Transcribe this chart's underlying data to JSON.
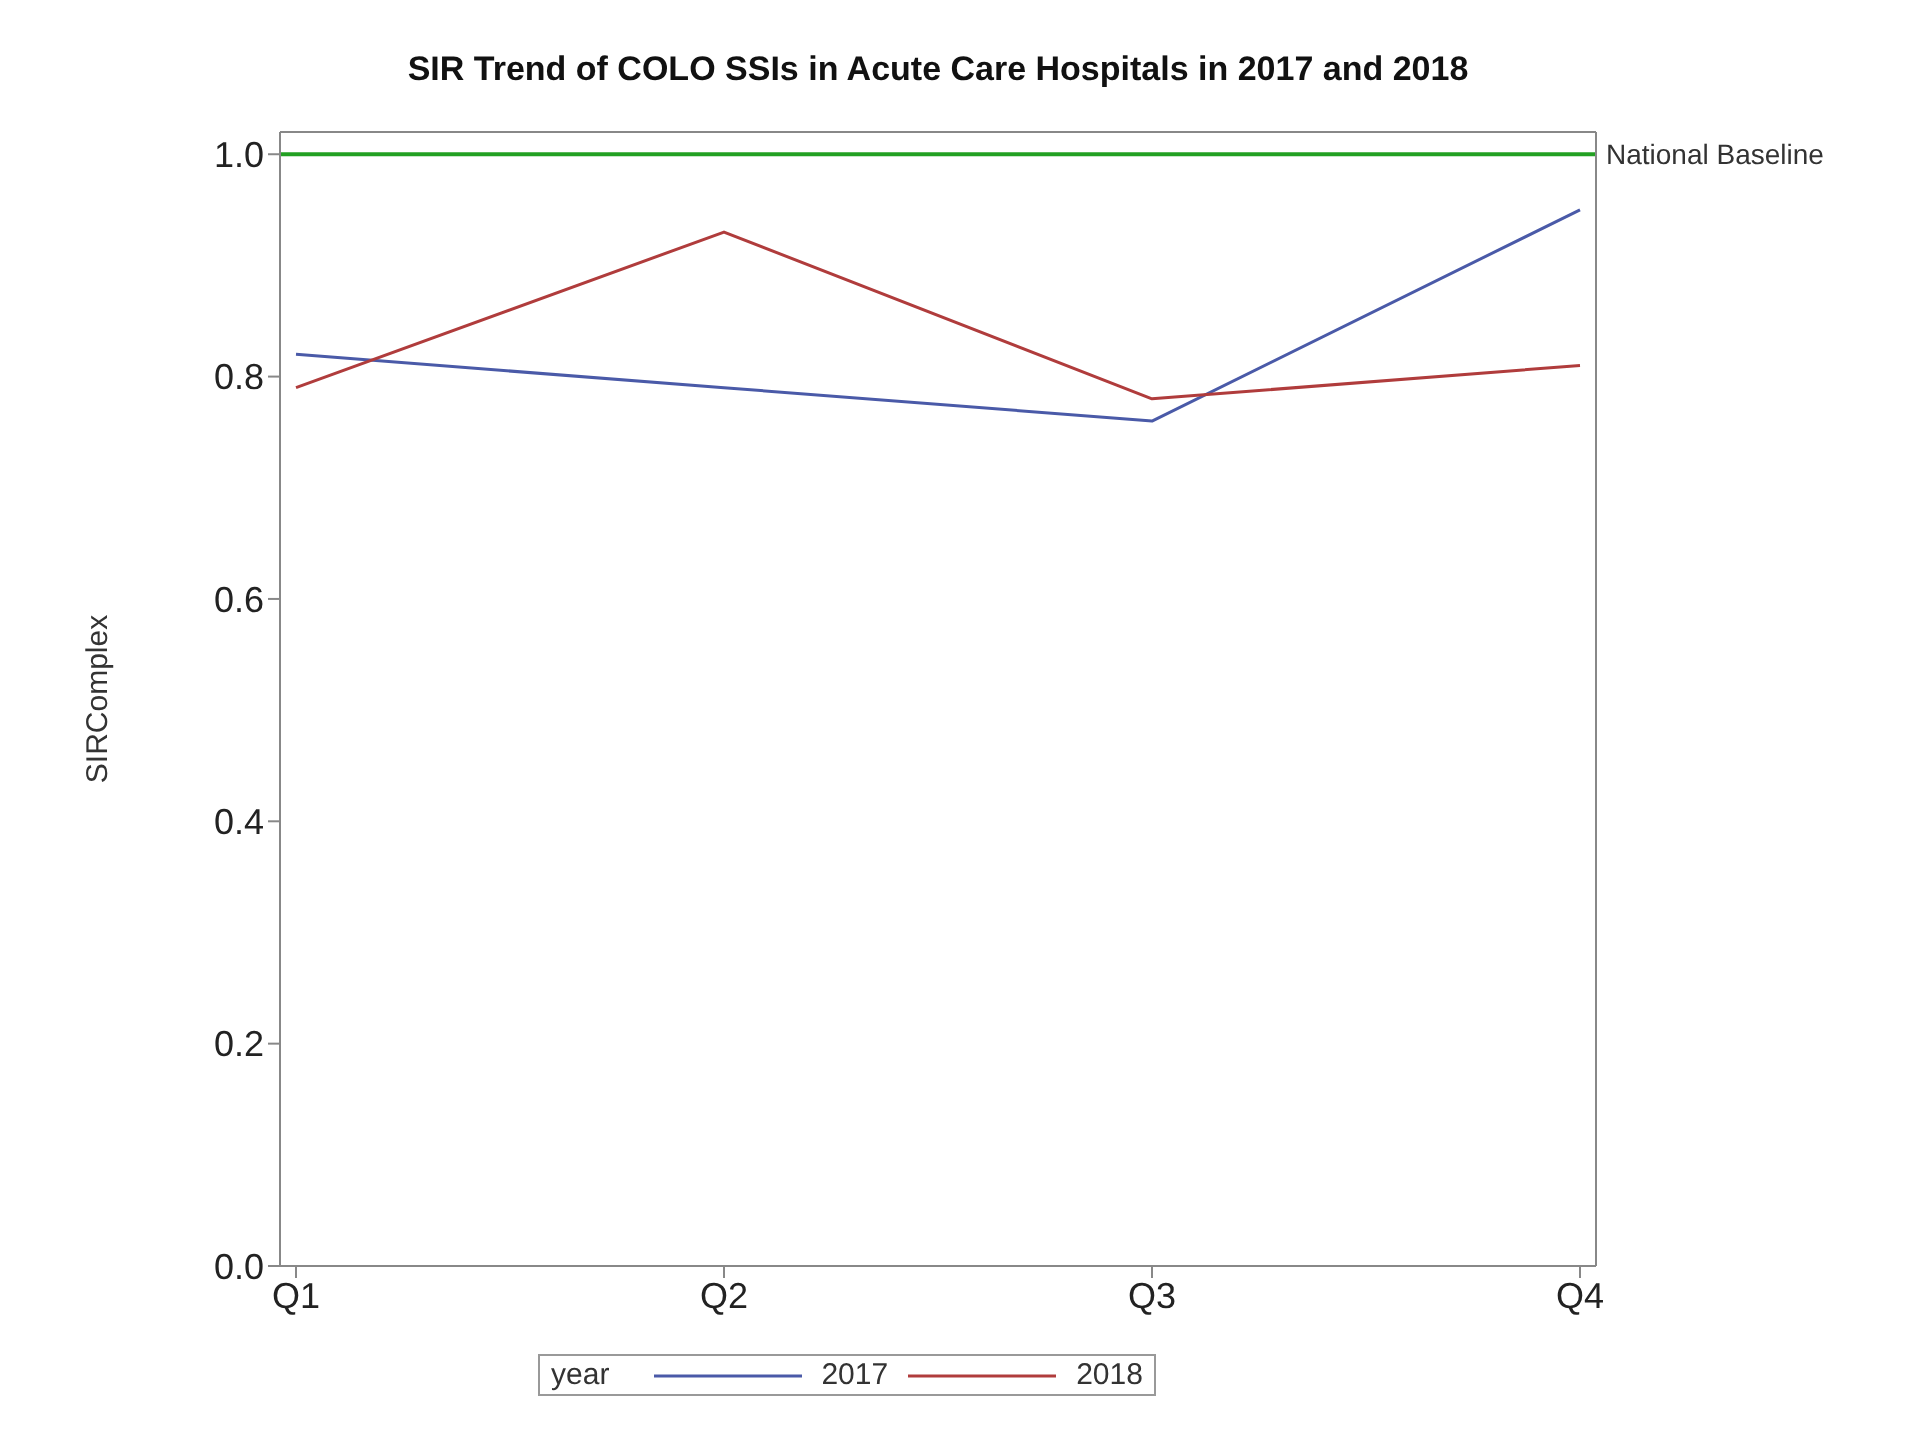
{
  "chart_data": {
    "type": "line",
    "title": "SIR Trend of COLO SSIs in Acute Care Hospitals in 2017 and 2018",
    "ylabel": "SIRComplex",
    "legend_title": "year",
    "categories": [
      "Q1",
      "Q2",
      "Q3",
      "Q4"
    ],
    "series": [
      {
        "name": "2017",
        "color": "#4a5aa8",
        "values": [
          0.82,
          0.79,
          0.76,
          0.95
        ]
      },
      {
        "name": "2018",
        "color": "#b03c3c",
        "values": [
          0.79,
          0.93,
          0.78,
          0.81
        ]
      }
    ],
    "ylim": [
      0,
      1.02
    ],
    "yticks": [
      {
        "value": 0,
        "label": "0.0"
      },
      0.2,
      0.4,
      0.6,
      0.8,
      {
        "value": 1,
        "label": "1.0"
      }
    ],
    "ref_lines": [
      {
        "axis": "y",
        "value": 1,
        "label": "National Baseline",
        "color": "#22a022"
      }
    ],
    "legend": "bottom",
    "grid": false,
    "marker": "none",
    "line_style": "solid"
  }
}
